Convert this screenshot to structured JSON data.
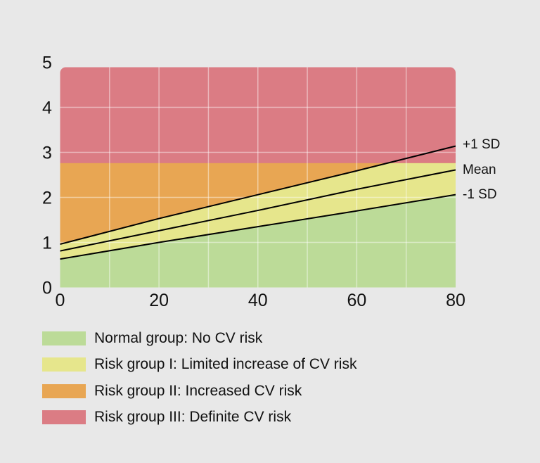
{
  "chart_data": {
    "type": "line",
    "xlim": [
      0,
      80
    ],
    "ylim": [
      0,
      5
    ],
    "x_ticks": [
      "0",
      "20",
      "40",
      "60",
      "80"
    ],
    "y_ticks": [
      "0",
      "1",
      "2",
      "3",
      "4",
      "5"
    ],
    "grid": true,
    "x": [
      0,
      20,
      40,
      60,
      80
    ],
    "series": [
      {
        "name": "+1 SD",
        "values": [
          0.96,
          1.53,
          2.06,
          2.59,
          3.14
        ]
      },
      {
        "name": "Mean",
        "values": [
          0.81,
          1.26,
          1.71,
          2.18,
          2.61
        ]
      },
      {
        "name": "-1 SD",
        "values": [
          0.63,
          1.0,
          1.35,
          1.7,
          2.06
        ]
      }
    ],
    "risk_threshold": 2.76,
    "legend_placement": "bottom",
    "legend": [
      {
        "label": "Normal group: No CV risk",
        "color": "#bcdb98"
      },
      {
        "label": "Risk group I: Limited increase of CV risk",
        "color": "#e6e68c"
      },
      {
        "label": "Risk group II: Increased CV risk",
        "color": "#e8a653"
      },
      {
        "label": "Risk group III: Definite CV risk",
        "color": "#db7c84"
      }
    ]
  }
}
